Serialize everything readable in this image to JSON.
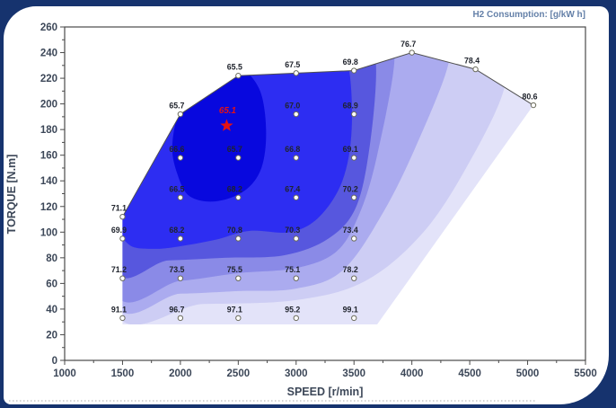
{
  "chart_data": {
    "type": "contour-scatter",
    "title": "H2 Consumption: [g/kW h]",
    "xlabel": "SPEED [r/min]",
    "ylabel": "TORQUE [N.m]",
    "xlim": [
      1000,
      5500
    ],
    "ylim": [
      0,
      260
    ],
    "x_major_step": 500,
    "x_minor_step": 250,
    "y_major_step": 20,
    "y_minor_step": 10,
    "grid": false,
    "legend_position": "top-right",
    "points": [
      {
        "speed": 1500,
        "torque": 112,
        "value": 71.1
      },
      {
        "speed": 2000,
        "torque": 192,
        "value": 65.7
      },
      {
        "speed": 2500,
        "torque": 222,
        "value": 65.5
      },
      {
        "speed": 3000,
        "torque": 224,
        "value": 67.5
      },
      {
        "speed": 3500,
        "torque": 226,
        "value": 69.8
      },
      {
        "speed": 4000,
        "torque": 240,
        "value": 76.7
      },
      {
        "speed": 4550,
        "torque": 227,
        "value": 78.4
      },
      {
        "speed": 5050,
        "torque": 199,
        "value": 80.6
      },
      {
        "speed": 3000,
        "torque": 192,
        "value": 67.0
      },
      {
        "speed": 3500,
        "torque": 192,
        "value": 68.9
      },
      {
        "speed": 2000,
        "torque": 158,
        "value": 66.6
      },
      {
        "speed": 2500,
        "torque": 158,
        "value": 65.7
      },
      {
        "speed": 3000,
        "torque": 158,
        "value": 66.8
      },
      {
        "speed": 3500,
        "torque": 158,
        "value": 69.1
      },
      {
        "speed": 2000,
        "torque": 127,
        "value": 66.5
      },
      {
        "speed": 2500,
        "torque": 127,
        "value": 68.2
      },
      {
        "speed": 3000,
        "torque": 127,
        "value": 67.4
      },
      {
        "speed": 3500,
        "torque": 127,
        "value": 70.2
      },
      {
        "speed": 1500,
        "torque": 95,
        "value": 69.9
      },
      {
        "speed": 2000,
        "torque": 95,
        "value": 68.2
      },
      {
        "speed": 2500,
        "torque": 95,
        "value": 70.8
      },
      {
        "speed": 3000,
        "torque": 95,
        "value": 70.3
      },
      {
        "speed": 3500,
        "torque": 95,
        "value": 73.4
      },
      {
        "speed": 1500,
        "torque": 64,
        "value": 71.2
      },
      {
        "speed": 2000,
        "torque": 64,
        "value": 73.5
      },
      {
        "speed": 2500,
        "torque": 64,
        "value": 75.5
      },
      {
        "speed": 3000,
        "torque": 64,
        "value": 75.1
      },
      {
        "speed": 3500,
        "torque": 64,
        "value": 78.2
      },
      {
        "speed": 1500,
        "torque": 33,
        "value": 91.1
      },
      {
        "speed": 2000,
        "torque": 33,
        "value": 96.7
      },
      {
        "speed": 2500,
        "torque": 33,
        "value": 97.1
      },
      {
        "speed": 3000,
        "torque": 33,
        "value": 95.2
      },
      {
        "speed": 3500,
        "torque": 33,
        "value": 99.1
      }
    ],
    "optimum_point": {
      "speed": 2400,
      "torque": 183,
      "value": 65.1
    },
    "boundary_line": [
      [
        1500,
        112
      ],
      [
        2000,
        192
      ],
      [
        2500,
        222
      ],
      [
        3000,
        224
      ],
      [
        3500,
        226
      ],
      [
        4000,
        240
      ],
      [
        4550,
        227
      ],
      [
        5050,
        199
      ]
    ],
    "region_clip": [
      [
        1500,
        28
      ],
      [
        1500,
        112
      ],
      [
        2000,
        192
      ],
      [
        2500,
        222
      ],
      [
        3000,
        224
      ],
      [
        3500,
        226
      ],
      [
        4000,
        240
      ],
      [
        4550,
        227
      ],
      [
        5050,
        199
      ],
      [
        3700,
        28
      ]
    ],
    "region_base_color": "#E3E3F9",
    "bands": [
      {
        "color": "#CDCDF4",
        "poly": [
          [
            1400,
            44
          ],
          [
            2200,
            44
          ],
          [
            3000,
            47
          ],
          [
            3600,
            62
          ],
          [
            4100,
            100
          ],
          [
            4500,
            155
          ],
          [
            4800,
            213
          ],
          [
            4750,
            248
          ],
          [
            4000,
            262
          ],
          [
            3000,
            262
          ],
          [
            2000,
            262
          ],
          [
            1400,
            262
          ]
        ]
      },
      {
        "color": "#ABABEF",
        "poly": [
          [
            1400,
            52
          ],
          [
            2000,
            52
          ],
          [
            2500,
            54
          ],
          [
            3000,
            56
          ],
          [
            3400,
            70
          ],
          [
            3750,
            115
          ],
          [
            4050,
            170
          ],
          [
            4320,
            233
          ],
          [
            4230,
            255
          ],
          [
            3500,
            264
          ],
          [
            2500,
            264
          ],
          [
            1400,
            264
          ]
        ]
      },
      {
        "color": "#8A8AE7",
        "poly": [
          [
            1400,
            60
          ],
          [
            2000,
            62
          ],
          [
            2500,
            68
          ],
          [
            3000,
            72
          ],
          [
            3350,
            85
          ],
          [
            3550,
            115
          ],
          [
            3700,
            160
          ],
          [
            3850,
            235
          ],
          [
            3740,
            258
          ],
          [
            3000,
            266
          ],
          [
            2000,
            266
          ],
          [
            1400,
            266
          ]
        ]
      },
      {
        "color": "#5757DE",
        "poly": [
          [
            1400,
            78
          ],
          [
            1900,
            78
          ],
          [
            2400,
            80
          ],
          [
            2900,
            82
          ],
          [
            3280,
            95
          ],
          [
            3520,
            120
          ],
          [
            3640,
            170
          ],
          [
            3690,
            231
          ],
          [
            3590,
            258
          ],
          [
            2800,
            266
          ],
          [
            1900,
            266
          ],
          [
            1400,
            266
          ]
        ]
      },
      {
        "color": "#2D2DF2",
        "poly": [
          [
            1560,
            90
          ],
          [
            1780,
            87
          ],
          [
            2000,
            89
          ],
          [
            2300,
            94
          ],
          [
            2600,
            101
          ],
          [
            2950,
            100
          ],
          [
            3200,
            112
          ],
          [
            3400,
            140
          ],
          [
            3480,
            180
          ],
          [
            3450,
            230
          ],
          [
            3300,
            252
          ],
          [
            2800,
            258
          ],
          [
            2200,
            246
          ],
          [
            1800,
            215
          ],
          [
            1520,
            150
          ],
          [
            1470,
            108
          ]
        ]
      },
      {
        "color": "#0808DE",
        "poly": [
          [
            1975,
            145
          ],
          [
            2080,
            128
          ],
          [
            2300,
            124
          ],
          [
            2550,
            132
          ],
          [
            2700,
            150
          ],
          [
            2740,
            180
          ],
          [
            2680,
            212
          ],
          [
            2480,
            230
          ],
          [
            2240,
            222
          ],
          [
            2010,
            198
          ],
          [
            1930,
            168
          ]
        ]
      }
    ]
  },
  "colors": {
    "background": "#16336E",
    "panel": "#FFFFFF",
    "boundary_line": "#4F4F4F",
    "marker_fill": "#FFFFFF",
    "marker_stroke": "#6B6B5C",
    "value_label": "#20242D",
    "axis": "#4A4A4A",
    "tick_label": "#3C4758",
    "title": "#6480A8",
    "optimum": "#E51212",
    "dotted_line": "#AAAAAA"
  }
}
